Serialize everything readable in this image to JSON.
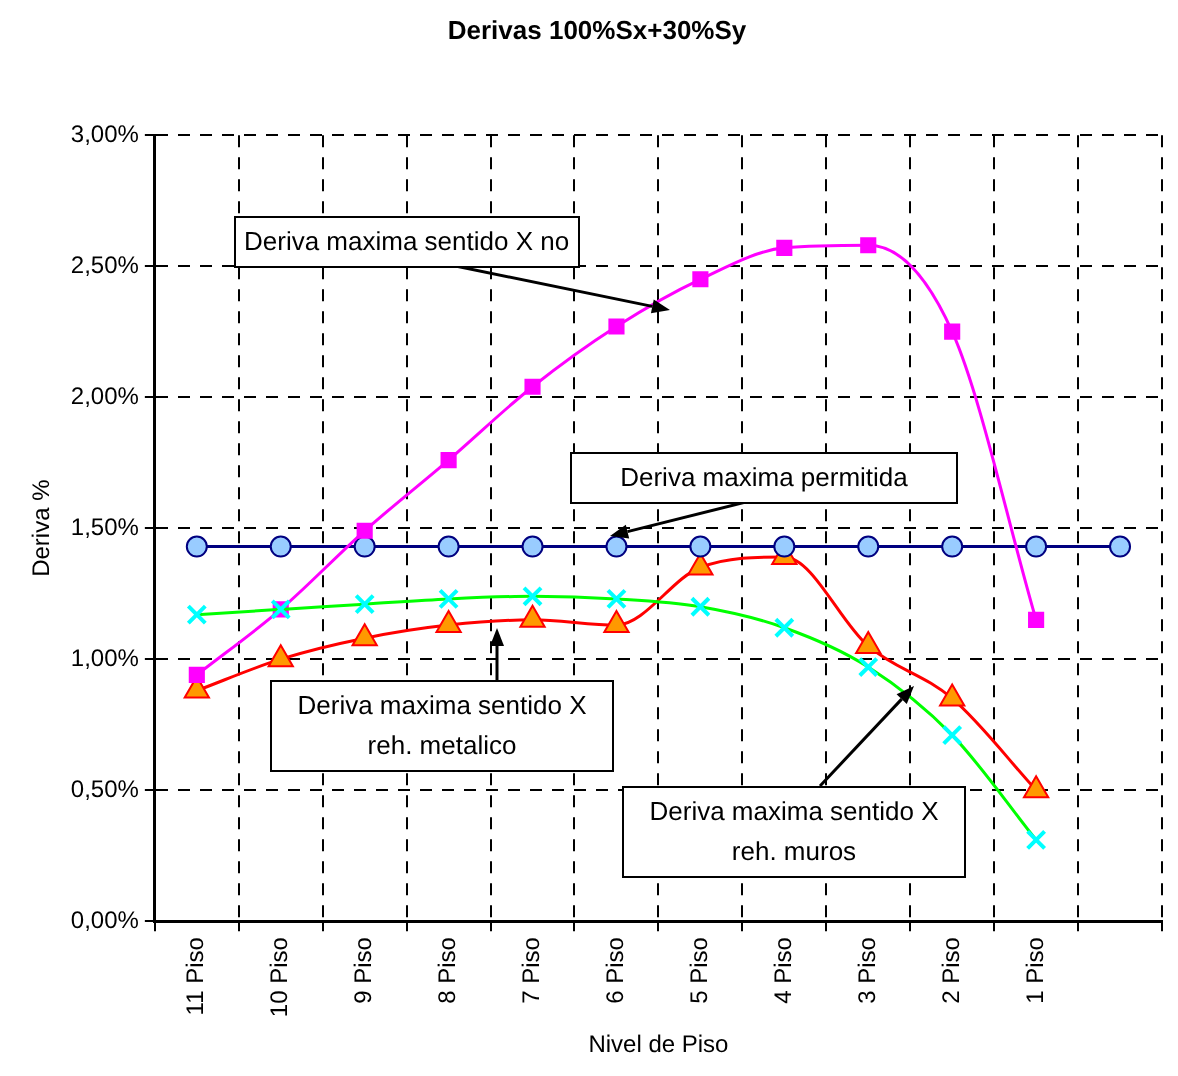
{
  "chart_data": {
    "type": "line",
    "title": "Derivas 100%Sx+30%Sy",
    "xlabel": "Nivel de Piso",
    "ylabel": "Deriva %",
    "categories": [
      "11 Piso",
      "10 Piso",
      "9 Piso",
      "8 Piso",
      "7 Piso",
      "6 Piso",
      "5 Piso",
      "4 Piso",
      "3 Piso",
      "2 Piso",
      "1 Piso",
      null
    ],
    "series": [
      {
        "name": "Deriva maxima sentido X no",
        "color": "#ff00ff",
        "marker": "square",
        "values": [
          0.94,
          1.19,
          1.49,
          1.76,
          2.04,
          2.27,
          2.45,
          2.57,
          2.58,
          2.25,
          1.15,
          null
        ]
      },
      {
        "name": "Deriva maxima permitida",
        "color": "#000080",
        "marker": "circle",
        "values": [
          1.43,
          1.43,
          1.43,
          1.43,
          1.43,
          1.43,
          1.43,
          1.43,
          1.43,
          1.43,
          1.43,
          1.43
        ]
      },
      {
        "name": "Deriva maxima sentido X reh. muros",
        "color": "#00ff00",
        "marker": "cross",
        "values": [
          1.17,
          1.19,
          1.21,
          1.23,
          1.24,
          1.23,
          1.2,
          1.12,
          0.97,
          0.71,
          0.31,
          null
        ]
      },
      {
        "name": "Deriva maxima sentido X reh. metalico",
        "color": "#ff0000",
        "marker": "triangle",
        "values": [
          0.88,
          1.0,
          1.08,
          1.13,
          1.15,
          1.13,
          1.35,
          1.39,
          1.05,
          0.85,
          0.5,
          null
        ]
      }
    ],
    "ylim": [
      0,
      3
    ],
    "yticks": [
      {
        "value": 0,
        "label": "0,00%"
      },
      {
        "value": 0.5,
        "label": "0,50%"
      },
      {
        "value": 1,
        "label": "1,00%"
      },
      {
        "value": 1.5,
        "label": "1,50%"
      },
      {
        "value": 2,
        "label": "2,00%"
      },
      {
        "value": 2.5,
        "label": "2,50%"
      },
      {
        "value": 3,
        "label": "3,00%"
      }
    ],
    "grid": true,
    "legend": false,
    "line_style": "solid"
  }
}
